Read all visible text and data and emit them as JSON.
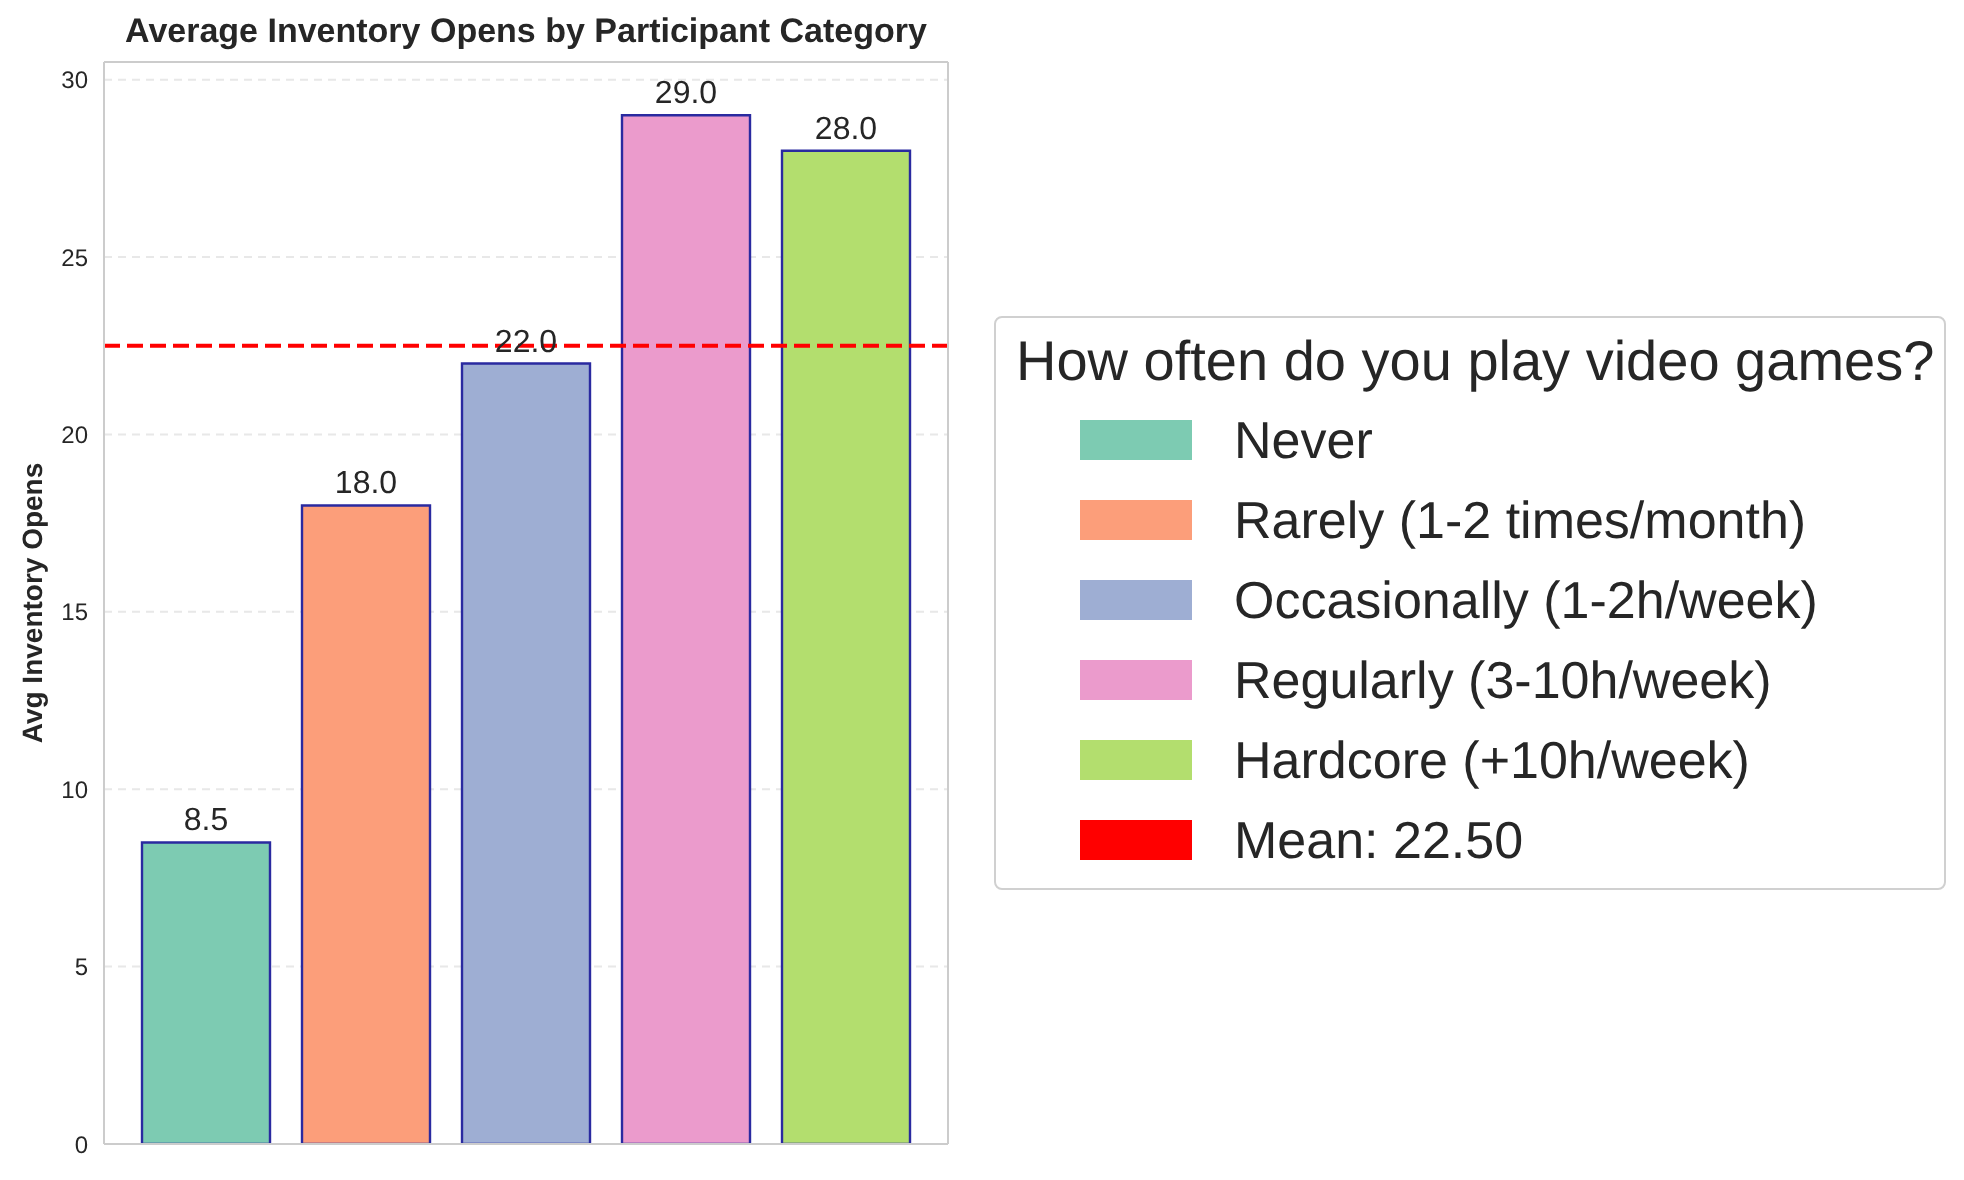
{
  "chart_data": {
    "type": "bar",
    "title": "Average Inventory Opens by Participant Category",
    "ylabel": "Avg Inventory Opens",
    "legend_title": "How often do you play video games?",
    "categories": [
      null,
      null,
      null,
      null,
      null
    ],
    "stacked": true,
    "series": [
      {
        "name": "Never",
        "color": "#7dcbb2",
        "values": [
          8.5,
          null,
          null,
          null,
          null
        ],
        "value_labels": [
          "8.5",
          null,
          null,
          null,
          null
        ]
      },
      {
        "name": "Rarely (1-2 times/month)",
        "color": "#fc9e7a",
        "values": [
          null,
          18,
          null,
          null,
          null
        ],
        "value_labels": [
          null,
          "18.0",
          null,
          null,
          null
        ]
      },
      {
        "name": "Occasionally (1-2h/week)",
        "color": "#9eaed3",
        "values": [
          null,
          null,
          22,
          null,
          null
        ],
        "value_labels": [
          null,
          null,
          "22.0",
          null,
          null
        ]
      },
      {
        "name": "Regularly (3-10h/week)",
        "color": "#eb9bcc",
        "values": [
          null,
          null,
          null,
          29,
          null
        ],
        "value_labels": [
          null,
          null,
          null,
          "29.0",
          null
        ]
      },
      {
        "name": "Hardcore (+10h/week)",
        "color": "#b3de6e",
        "values": [
          null,
          null,
          null,
          null,
          28
        ],
        "value_labels": [
          null,
          null,
          null,
          null,
          "28.0"
        ]
      }
    ],
    "ylim": [
      0,
      30.5
    ],
    "yticks": [
      0,
      5,
      10,
      15,
      20,
      25,
      30
    ],
    "grid": "y",
    "legend": "right",
    "tick_labels": "y",
    "ref_lines": [
      {
        "axis": "y",
        "value": 22.5,
        "label": "Mean: 22.50",
        "color": "#ff0000",
        "line_style": "dashed"
      }
    ]
  }
}
